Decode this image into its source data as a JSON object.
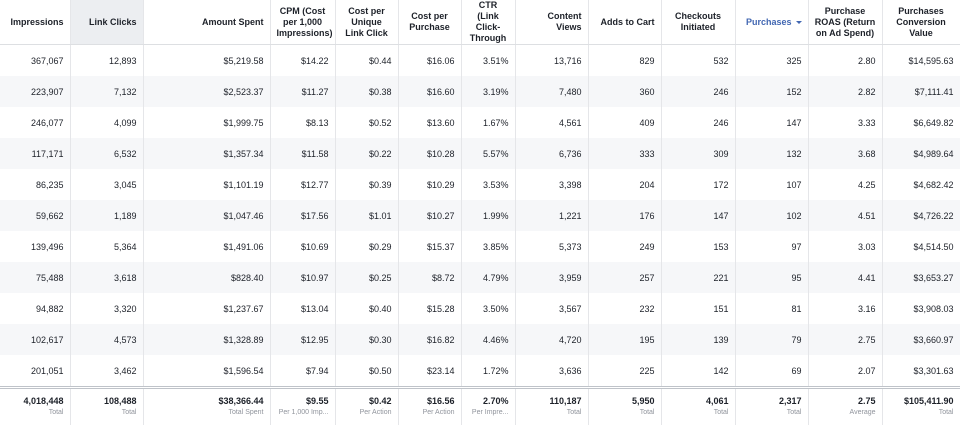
{
  "table": {
    "headers": [
      "Impressions",
      "Link Clicks",
      "Amount Spent",
      "CPM (Cost per 1,000 Impressions)",
      "Cost per Unique Link Click",
      "Cost per Purchase",
      "CTR (Link Click-Through",
      "Content Views",
      "Adds to Cart",
      "Checkouts Initiated",
      "Purchases",
      "Purchase ROAS (Return on Ad Spend)",
      "Purchases Conversion Value"
    ],
    "rows": [
      [
        "367,067",
        "12,893",
        "$5,219.58",
        "$14.22",
        "$0.44",
        "$16.06",
        "3.51%",
        "13,716",
        "829",
        "532",
        "325",
        "2.80",
        "$14,595.63"
      ],
      [
        "223,907",
        "7,132",
        "$2,523.37",
        "$11.27",
        "$0.38",
        "$16.60",
        "3.19%",
        "7,480",
        "360",
        "246",
        "152",
        "2.82",
        "$7,111.41"
      ],
      [
        "246,077",
        "4,099",
        "$1,999.75",
        "$8.13",
        "$0.52",
        "$13.60",
        "1.67%",
        "4,561",
        "409",
        "246",
        "147",
        "3.33",
        "$6,649.82"
      ],
      [
        "117,171",
        "6,532",
        "$1,357.34",
        "$11.58",
        "$0.22",
        "$10.28",
        "5.57%",
        "6,736",
        "333",
        "309",
        "132",
        "3.68",
        "$4,989.64"
      ],
      [
        "86,235",
        "3,045",
        "$1,101.19",
        "$12.77",
        "$0.39",
        "$10.29",
        "3.53%",
        "3,398",
        "204",
        "172",
        "107",
        "4.25",
        "$4,682.42"
      ],
      [
        "59,662",
        "1,189",
        "$1,047.46",
        "$17.56",
        "$1.01",
        "$10.27",
        "1.99%",
        "1,221",
        "176",
        "147",
        "102",
        "4.51",
        "$4,726.22"
      ],
      [
        "139,496",
        "5,364",
        "$1,491.06",
        "$10.69",
        "$0.29",
        "$15.37",
        "3.85%",
        "5,373",
        "249",
        "153",
        "97",
        "3.03",
        "$4,514.50"
      ],
      [
        "75,488",
        "3,618",
        "$828.40",
        "$10.97",
        "$0.25",
        "$8.72",
        "4.79%",
        "3,959",
        "257",
        "221",
        "95",
        "4.41",
        "$3,653.27"
      ],
      [
        "94,882",
        "3,320",
        "$1,237.67",
        "$13.04",
        "$0.40",
        "$15.28",
        "3.50%",
        "3,567",
        "232",
        "151",
        "81",
        "3.16",
        "$3,908.03"
      ],
      [
        "102,617",
        "4,573",
        "$1,328.89",
        "$12.95",
        "$0.30",
        "$16.82",
        "4.46%",
        "4,720",
        "195",
        "139",
        "79",
        "2.75",
        "$3,660.97"
      ],
      [
        "201,051",
        "3,462",
        "$1,596.54",
        "$7.94",
        "$0.50",
        "$23.14",
        "1.72%",
        "3,636",
        "225",
        "142",
        "69",
        "2.07",
        "$3,301.63"
      ]
    ],
    "totals": [
      {
        "value": "4,018,448",
        "label": "Total"
      },
      {
        "value": "108,488",
        "label": "Total"
      },
      {
        "value": "$38,366.44",
        "label": "Total Spent"
      },
      {
        "value": "$9.55",
        "label": "Per 1,000 Imp..."
      },
      {
        "value": "$0.42",
        "label": "Per Action"
      },
      {
        "value": "$16.56",
        "label": "Per Action"
      },
      {
        "value": "2.70%",
        "label": "Per Impre..."
      },
      {
        "value": "110,187",
        "label": "Total"
      },
      {
        "value": "5,950",
        "label": "Total"
      },
      {
        "value": "4,061",
        "label": "Total"
      },
      {
        "value": "2,317",
        "label": "Total"
      },
      {
        "value": "2.75",
        "label": "Average"
      },
      {
        "value": "$105,411.90",
        "label": "Total"
      }
    ]
  }
}
